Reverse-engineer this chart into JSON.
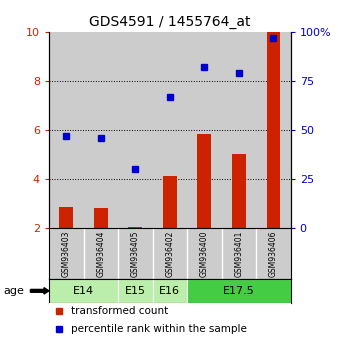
{
  "title": "GDS4591 / 1455764_at",
  "samples": [
    "GSM936403",
    "GSM936404",
    "GSM936405",
    "GSM936402",
    "GSM936400",
    "GSM936401",
    "GSM936406"
  ],
  "transformed_count": [
    2.85,
    2.8,
    2.05,
    4.1,
    5.85,
    5.0,
    10.0
  ],
  "percentile_rank_pct": [
    47,
    46,
    30,
    67,
    82,
    79,
    97
  ],
  "age_group_spans": [
    {
      "label": "E14",
      "start": 0,
      "end": 2,
      "color": "#bbeeaa"
    },
    {
      "label": "E15",
      "start": 2,
      "end": 3,
      "color": "#bbeeaa"
    },
    {
      "label": "E16",
      "start": 3,
      "end": 4,
      "color": "#bbeeaa"
    },
    {
      "label": "E17.5",
      "start": 4,
      "end": 7,
      "color": "#44cc44"
    }
  ],
  "bar_color": "#cc2200",
  "dot_color": "#0000cc",
  "ylim_left": [
    2,
    10
  ],
  "ylim_right": [
    0,
    100
  ],
  "yticks_left": [
    2,
    4,
    6,
    8,
    10
  ],
  "yticks_right": [
    0,
    25,
    50,
    75,
    100
  ],
  "ytick_labels_right": [
    "0",
    "25",
    "50",
    "75",
    "100%"
  ],
  "grid_values": [
    4,
    6,
    8
  ],
  "background_color": "#ffffff",
  "sample_bg_color": "#cccccc",
  "bar_width": 0.4
}
